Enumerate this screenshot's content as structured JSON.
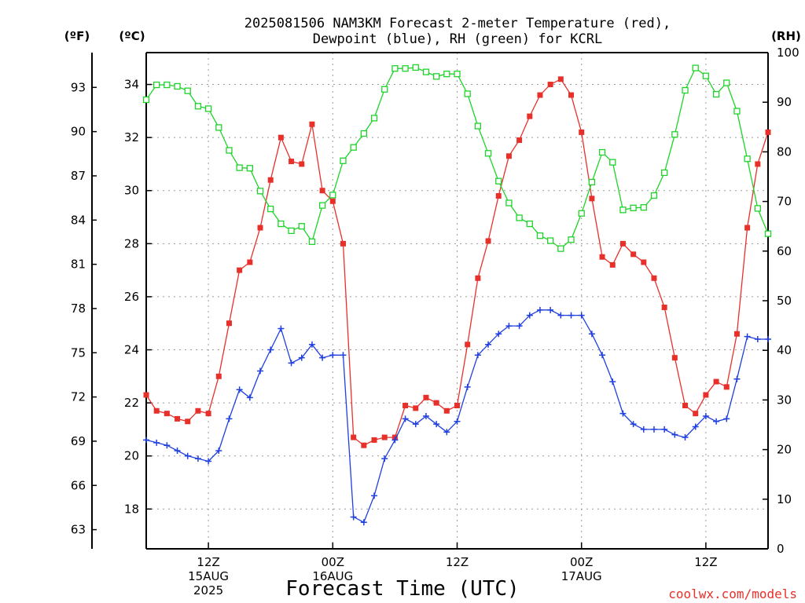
{
  "chart_data": {
    "type": "line",
    "title_line1": "2025081506 NAM3KM Forecast 2-meter Temperature (red),",
    "title_line2": "Dewpoint (blue), RH (green) for KCRL",
    "xlabel": "Forecast Time (UTC)",
    "credit": "coolwx.com/models",
    "unit_f": "(ºF)",
    "unit_c": "(ºC)",
    "unit_rh": "(RH)",
    "x_range_hours": [
      0,
      60
    ],
    "x_ticks": [
      {
        "hour": 6,
        "line1": "12Z",
        "line2": "15AUG",
        "line3": "2025"
      },
      {
        "hour": 18,
        "line1": "00Z",
        "line2": "16AUG",
        "line3": ""
      },
      {
        "hour": 30,
        "line1": "12Z",
        "line2": "",
        "line3": ""
      },
      {
        "hour": 42,
        "line1": "00Z",
        "line2": "17AUG",
        "line3": ""
      },
      {
        "hour": 54,
        "line1": "12Z",
        "line2": "",
        "line3": ""
      }
    ],
    "c_axis": {
      "min": 16.5,
      "max": 35.2,
      "ticks": [
        18,
        20,
        22,
        24,
        26,
        28,
        30,
        32,
        34
      ]
    },
    "f_axis": {
      "ticks": [
        63,
        66,
        69,
        72,
        75,
        78,
        81,
        84,
        87,
        90,
        93
      ]
    },
    "rh_axis": {
      "min": 0,
      "max": 100,
      "ticks": [
        0,
        10,
        20,
        30,
        40,
        50,
        60,
        70,
        80,
        90,
        100
      ]
    },
    "grid": true,
    "series": [
      {
        "name": "Temperature",
        "color": "#e8302a",
        "marker": "filled-square",
        "axis": "c",
        "values": [
          22.3,
          21.7,
          21.6,
          21.4,
          21.3,
          21.7,
          21.6,
          23.0,
          25.0,
          27.0,
          27.3,
          28.6,
          30.4,
          32.0,
          31.1,
          31.0,
          32.5,
          30.0,
          29.6,
          28.0,
          20.7,
          20.4,
          20.6,
          20.7,
          20.7,
          21.9,
          21.8,
          22.2,
          22.0,
          21.7,
          21.9,
          24.2,
          26.7,
          28.1,
          29.8,
          31.3,
          31.9,
          32.8,
          33.6,
          34.0,
          34.2,
          33.6,
          32.2,
          29.7,
          27.5,
          27.2,
          28.0,
          27.6,
          27.3,
          26.7,
          25.6,
          23.7,
          21.9,
          21.6,
          22.3,
          22.8,
          22.6,
          24.6,
          28.6,
          31.0,
          32.2
        ]
      },
      {
        "name": "Dewpoint",
        "color": "#1f3fe0",
        "marker": "plus",
        "axis": "c",
        "values": [
          20.6,
          20.5,
          20.4,
          20.2,
          20.0,
          19.9,
          19.8,
          20.2,
          21.4,
          22.5,
          22.2,
          23.2,
          24.0,
          24.8,
          23.5,
          23.7,
          24.2,
          23.7,
          23.8,
          23.8,
          17.7,
          17.5,
          18.5,
          19.9,
          20.6,
          21.4,
          21.2,
          21.5,
          21.2,
          20.9,
          21.3,
          22.6,
          23.8,
          24.2,
          24.6,
          24.9,
          24.9,
          25.3,
          25.5,
          25.5,
          25.3,
          25.3,
          25.3,
          24.6,
          23.8,
          22.8,
          21.6,
          21.2,
          21.0,
          21.0,
          21.0,
          20.8,
          20.7,
          21.1,
          21.5,
          21.3,
          21.4,
          22.9,
          24.5,
          24.4,
          24.4
        ]
      },
      {
        "name": "RH",
        "color": "#1ed42a",
        "marker": "open-square",
        "axis": "rh",
        "values": [
          90.5,
          93.5,
          93.5,
          93.2,
          92.3,
          89.2,
          88.7,
          84.9,
          80.3,
          76.8,
          76.7,
          72.1,
          68.5,
          65.5,
          64.1,
          65.0,
          61.9,
          69.2,
          71.3,
          78.2,
          80.9,
          83.7,
          86.8,
          92.6,
          96.8,
          96.8,
          97.0,
          96.1,
          95.2,
          95.7,
          95.7,
          91.7,
          85.2,
          79.7,
          74.1,
          69.7,
          66.7,
          65.5,
          63.1,
          62.1,
          60.5,
          62.3,
          67.6,
          73.9,
          79.9,
          77.9,
          68.3,
          68.7,
          68.8,
          71.2,
          75.8,
          83.5,
          92.4,
          96.9,
          95.3,
          91.6,
          93.9,
          88.2,
          78.6,
          68.6,
          63.5
        ]
      }
    ]
  }
}
